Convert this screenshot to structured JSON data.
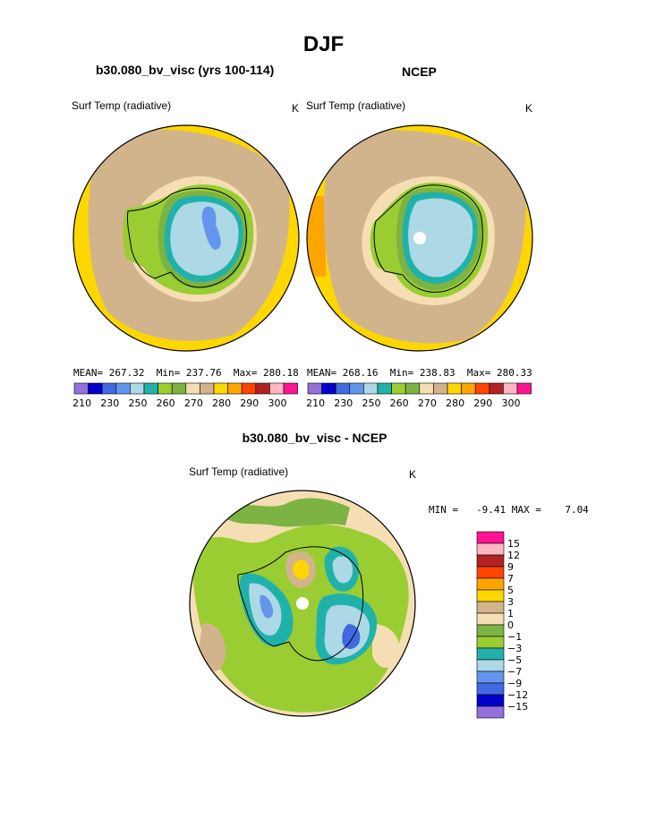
{
  "page": {
    "title": "DJF",
    "panels": [
      {
        "case_title": "b30.080_bv_visc (yrs 100-114)",
        "variable": "Surf Temp (radiative)",
        "units": "K",
        "stats": {
          "mean_label": "MEAN=",
          "mean": "267.32",
          "min_label": "Min=",
          "min": "237.76",
          "max_label": "Max=",
          "max": "280.18"
        }
      },
      {
        "case_title": "NCEP",
        "variable": "Surf Temp (radiative)",
        "units": "K",
        "stats": {
          "mean_label": "MEAN=",
          "mean": "268.16",
          "min_label": "Min=",
          "min": "238.83",
          "max_label": "Max=",
          "max": "280.33"
        }
      }
    ],
    "diff": {
      "title": "b30.080_bv_visc - NCEP",
      "variable": "Surf Temp (radiative)",
      "units": "K",
      "minmax": "MIN =   -9.41 MAX =    7.04"
    }
  },
  "chart_data": [
    {
      "type": "heatmap",
      "title": "b30.080_bv_visc (yrs 100-114)",
      "projection": "south-polar-stereographic",
      "variable": "Surf Temp (radiative)",
      "units": "K",
      "mean": 267.32,
      "min": 237.76,
      "max": 280.18,
      "colorbar": {
        "orientation": "horizontal",
        "levels": [
          210,
          220,
          230,
          240,
          250,
          255,
          260,
          265,
          270,
          275,
          280,
          285,
          290,
          295,
          300
        ],
        "tick_labels": [
          "210",
          "230",
          "250",
          "260",
          "270",
          "280",
          "290",
          "300"
        ],
        "colors": [
          "#9370db",
          "#0000cd",
          "#4169e1",
          "#6495ed",
          "#add8e6",
          "#20b2aa",
          "#9acd32",
          "#7cb342",
          "#f5deb3",
          "#d2b48c",
          "#ffd700",
          "#ffa500",
          "#ff4500",
          "#b22222",
          "#ffb6c1",
          "#ff1493"
        ]
      }
    },
    {
      "type": "heatmap",
      "title": "NCEP",
      "projection": "south-polar-stereographic",
      "variable": "Surf Temp (radiative)",
      "units": "K",
      "mean": 268.16,
      "min": 238.83,
      "max": 280.33,
      "colorbar": {
        "orientation": "horizontal",
        "levels": [
          210,
          220,
          230,
          240,
          250,
          255,
          260,
          265,
          270,
          275,
          280,
          285,
          290,
          295,
          300
        ],
        "tick_labels": [
          "210",
          "230",
          "250",
          "260",
          "270",
          "280",
          "290",
          "300"
        ],
        "colors": [
          "#9370db",
          "#0000cd",
          "#4169e1",
          "#6495ed",
          "#add8e6",
          "#20b2aa",
          "#9acd32",
          "#7cb342",
          "#f5deb3",
          "#d2b48c",
          "#ffd700",
          "#ffa500",
          "#ff4500",
          "#b22222",
          "#ffb6c1",
          "#ff1493"
        ]
      }
    },
    {
      "type": "heatmap",
      "title": "b30.080_bv_visc - NCEP",
      "projection": "south-polar-stereographic",
      "variable": "Surf Temp (radiative)",
      "units": "K",
      "min": -9.41,
      "max": 7.04,
      "colorbar": {
        "orientation": "vertical",
        "tick_labels": [
          "15",
          "12",
          "9",
          "7",
          "5",
          "3",
          "1",
          "0",
          "−1",
          "−3",
          "−5",
          "−7",
          "−9",
          "−12",
          "−15"
        ],
        "colors": [
          "#ff1493",
          "#ffb6c1",
          "#b22222",
          "#ff4500",
          "#ffa500",
          "#ffd700",
          "#d2b48c",
          "#f5deb3",
          "#7cb342",
          "#9acd32",
          "#20b2aa",
          "#add8e6",
          "#6495ed",
          "#4169e1",
          "#0000cd",
          "#9370db"
        ]
      }
    }
  ]
}
